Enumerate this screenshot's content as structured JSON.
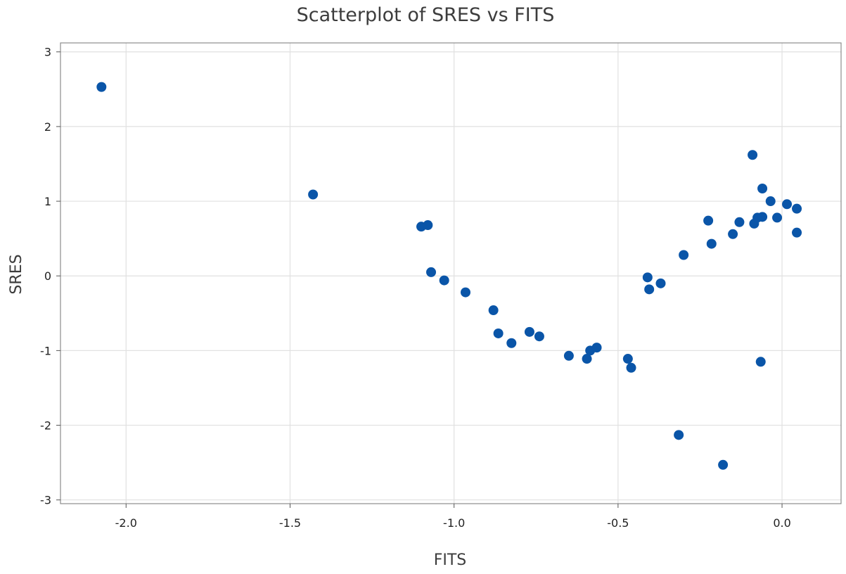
{
  "chart_data": {
    "type": "scatter",
    "title": "Scatterplot of SRES vs FITS",
    "xlabel": "FITS",
    "ylabel": "SRES",
    "xlim": [
      -2.2,
      0.18
    ],
    "ylim": [
      -3.05,
      3.12
    ],
    "x_ticks": [
      -2.0,
      -1.5,
      -1.0,
      -0.5,
      0.0
    ],
    "x_tick_labels": [
      "-2.0",
      "-1.5",
      "-1.0",
      "-0.5",
      "0.0"
    ],
    "y_ticks": [
      -3,
      -2,
      -1,
      0,
      1,
      2,
      3
    ],
    "y_tick_labels": [
      "-3",
      "-2",
      "-1",
      "0",
      "1",
      "2",
      "3"
    ],
    "grid": true,
    "legend": "none",
    "marker_color": "#0a55a8",
    "points": [
      {
        "x": -2.075,
        "y": 2.53
      },
      {
        "x": -1.43,
        "y": 1.09
      },
      {
        "x": -1.1,
        "y": 0.66
      },
      {
        "x": -1.08,
        "y": 0.68
      },
      {
        "x": -1.07,
        "y": 0.05
      },
      {
        "x": -1.03,
        "y": -0.06
      },
      {
        "x": -0.965,
        "y": -0.22
      },
      {
        "x": -0.88,
        "y": -0.46
      },
      {
        "x": -0.865,
        "y": -0.77
      },
      {
        "x": -0.825,
        "y": -0.9
      },
      {
        "x": -0.77,
        "y": -0.75
      },
      {
        "x": -0.74,
        "y": -0.81
      },
      {
        "x": -0.65,
        "y": -1.07
      },
      {
        "x": -0.595,
        "y": -1.11
      },
      {
        "x": -0.585,
        "y": -1.0
      },
      {
        "x": -0.565,
        "y": -0.96
      },
      {
        "x": -0.47,
        "y": -1.11
      },
      {
        "x": -0.46,
        "y": -1.23
      },
      {
        "x": -0.41,
        "y": -0.02
      },
      {
        "x": -0.405,
        "y": -0.18
      },
      {
        "x": -0.37,
        "y": -0.1
      },
      {
        "x": -0.315,
        "y": -2.13
      },
      {
        "x": -0.3,
        "y": 0.28
      },
      {
        "x": -0.225,
        "y": 0.74
      },
      {
        "x": -0.215,
        "y": 0.43
      },
      {
        "x": -0.18,
        "y": -2.53
      },
      {
        "x": -0.15,
        "y": 0.56
      },
      {
        "x": -0.13,
        "y": 0.72
      },
      {
        "x": -0.09,
        "y": 1.62
      },
      {
        "x": -0.085,
        "y": 0.7
      },
      {
        "x": -0.075,
        "y": 0.78
      },
      {
        "x": -0.065,
        "y": -1.15
      },
      {
        "x": -0.06,
        "y": 1.17
      },
      {
        "x": -0.06,
        "y": 0.79
      },
      {
        "x": -0.035,
        "y": 1.0
      },
      {
        "x": -0.015,
        "y": 0.78
      },
      {
        "x": 0.015,
        "y": 0.96
      },
      {
        "x": 0.045,
        "y": 0.58
      },
      {
        "x": 0.045,
        "y": 0.9
      }
    ]
  }
}
